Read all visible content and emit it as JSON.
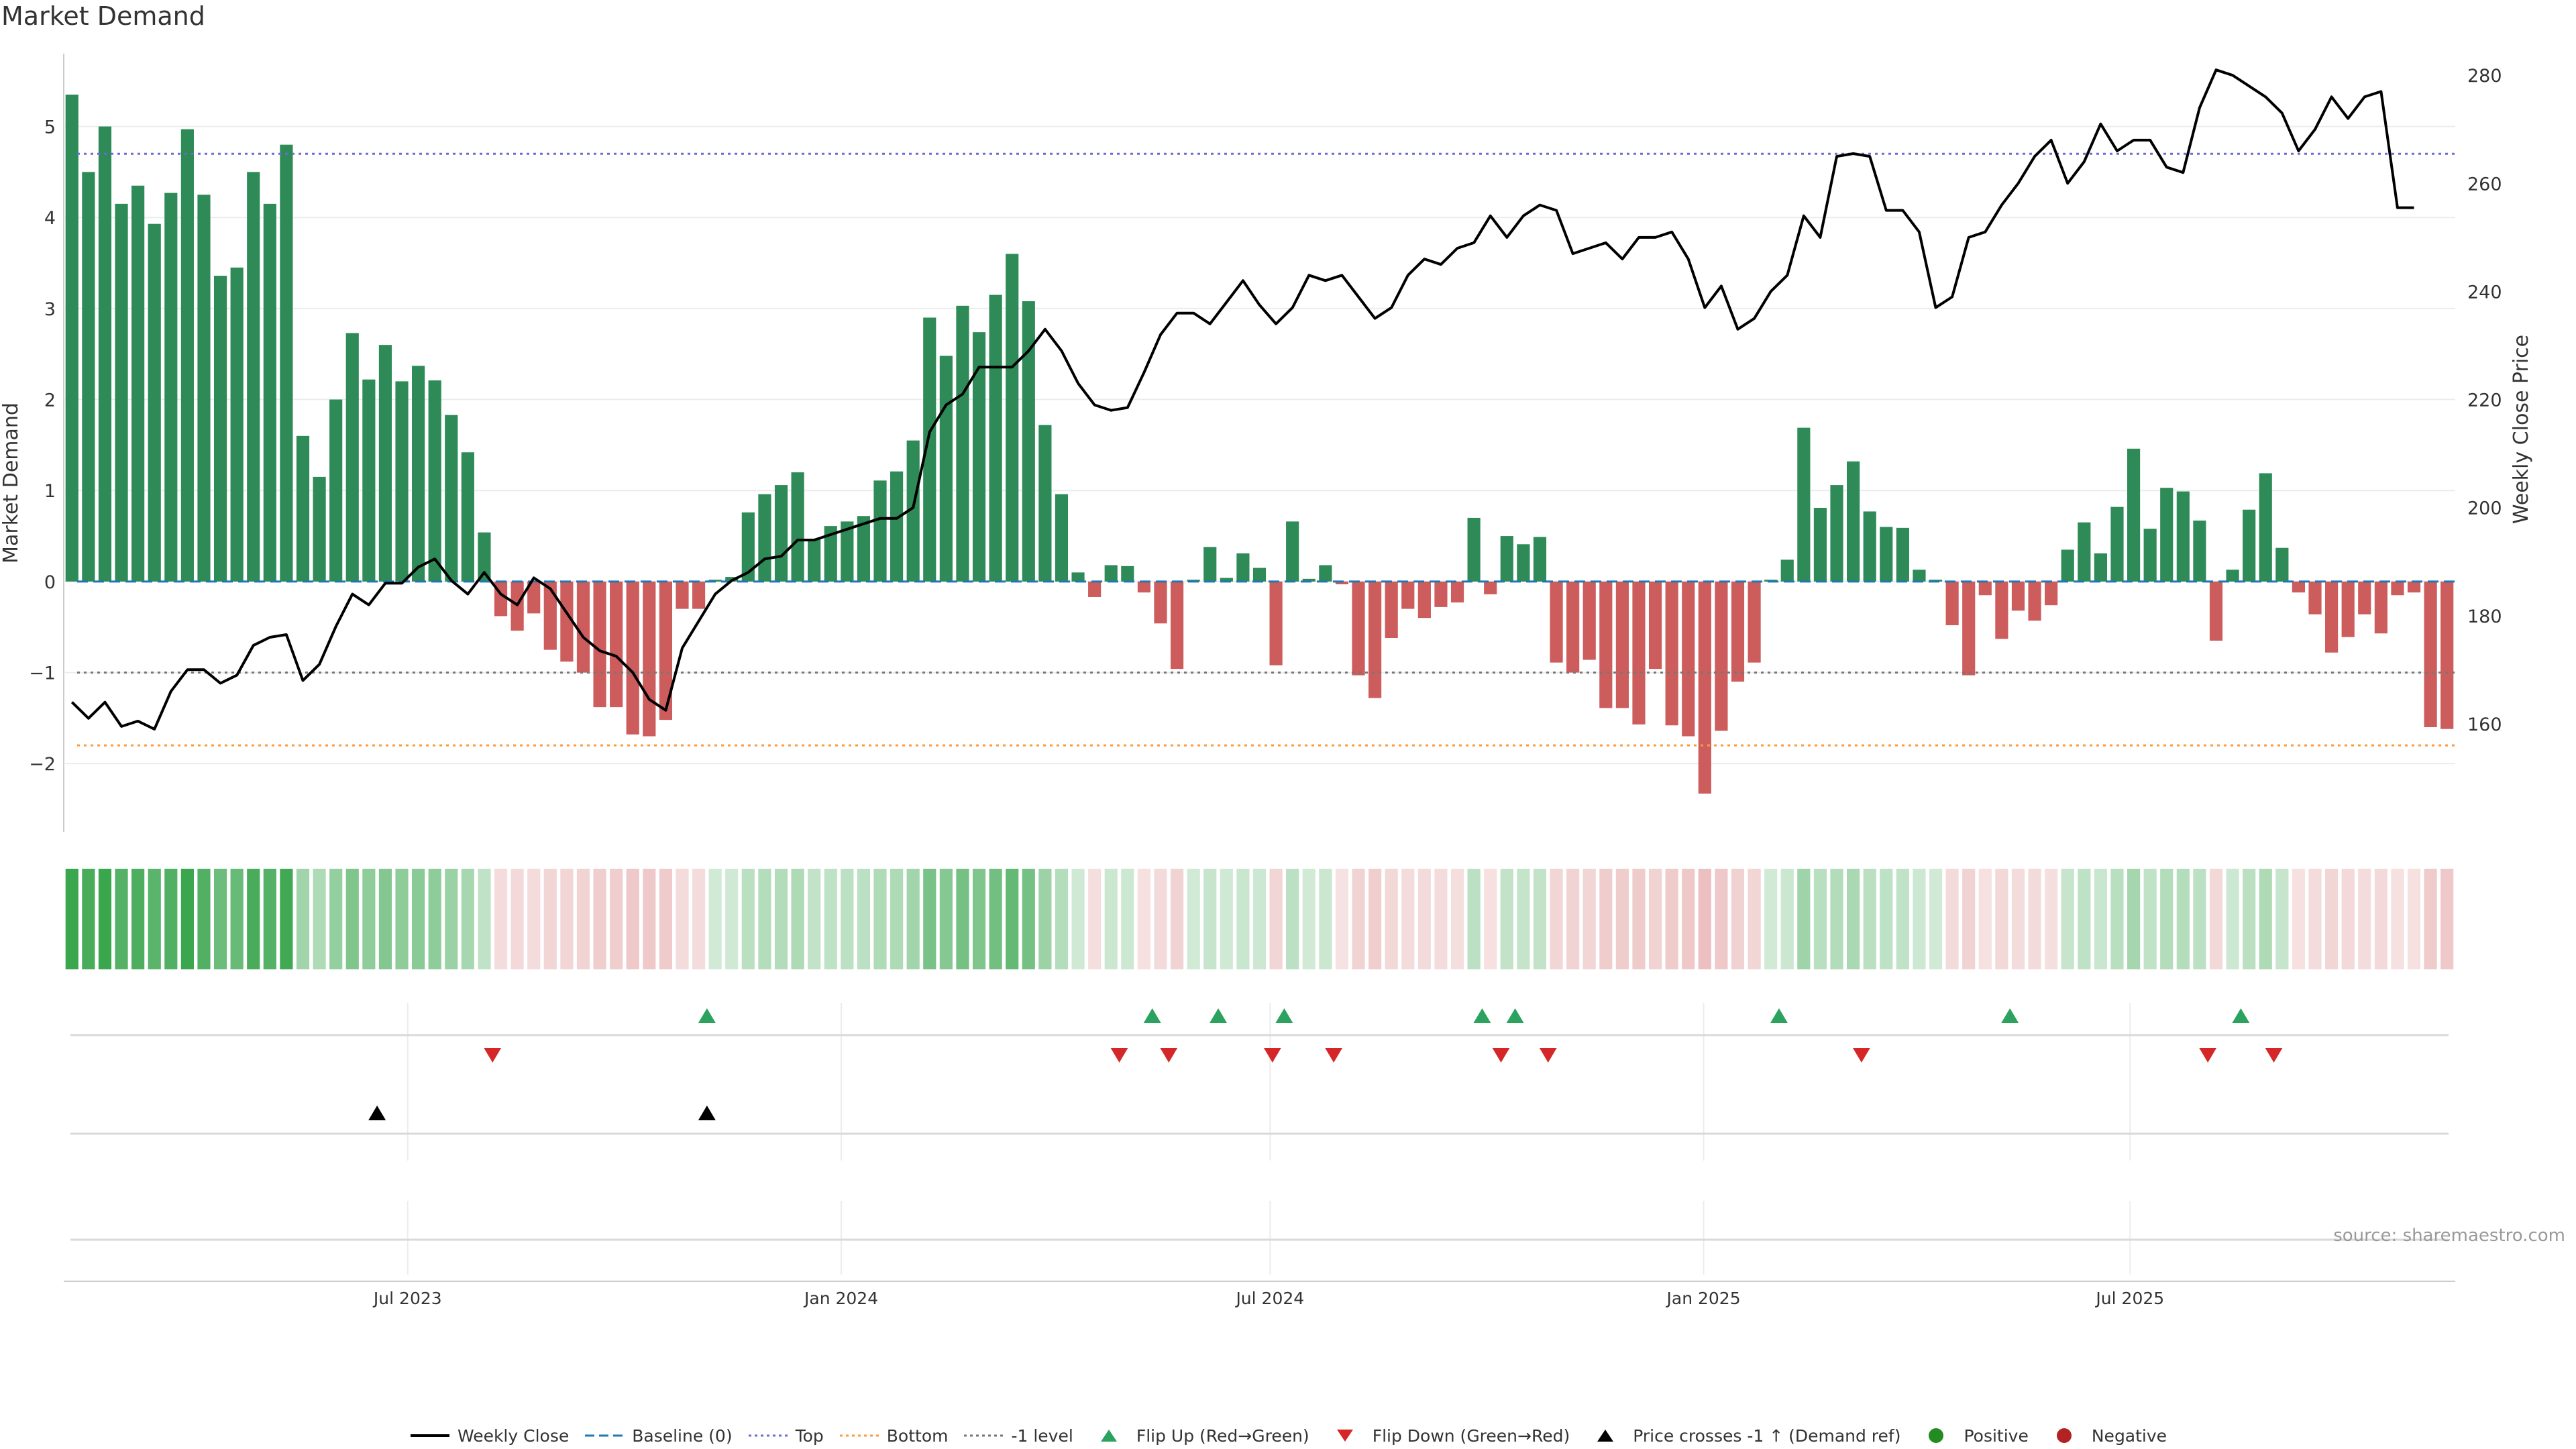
{
  "title": "Market Demand",
  "source": "source: sharemaestro.com",
  "colors": {
    "positive_bar": "#2e8b57",
    "negative_bar": "#cd5c5c",
    "price_line": "#000000",
    "baseline": "#1f77b4",
    "top": "#6b6bd6",
    "bottom": "#ff9a3c",
    "minus1": "#777777",
    "flip_up": "#2ca25f",
    "flip_down": "#d62728",
    "cross": "#000000",
    "positive_dot": "#228b22",
    "negative_dot": "#b22222"
  },
  "legend": [
    {
      "label": "Weekly Close",
      "kind": "line",
      "color": "#000000"
    },
    {
      "label": "Baseline (0)",
      "kind": "dash",
      "color": "#1f77b4"
    },
    {
      "label": "Top",
      "kind": "dot",
      "color": "#6b6bd6"
    },
    {
      "label": "Bottom",
      "kind": "dot",
      "color": "#ff9a3c"
    },
    {
      "label": "-1 level",
      "kind": "dot",
      "color": "#777777"
    },
    {
      "label": "Flip Up (Red→Green)",
      "kind": "tri-up",
      "color": "#2ca25f"
    },
    {
      "label": "Flip Down (Green→Red)",
      "kind": "tri-down",
      "color": "#d62728"
    },
    {
      "label": "Price crosses -1 ↑ (Demand ref)",
      "kind": "tri-up",
      "color": "#000000"
    },
    {
      "label": "Positive",
      "kind": "circle",
      "color": "#228b22"
    },
    {
      "label": "Negative",
      "kind": "circle",
      "color": "#b22222"
    }
  ],
  "chart_data": {
    "type": "bar",
    "title": "Market Demand",
    "ylabel": "Market Demand",
    "y2label": "Weekly Close Price",
    "ylim": [
      -2.75,
      5.8
    ],
    "y2lim": [
      140,
      284
    ],
    "yticks": [
      -2,
      -1,
      0,
      1,
      2,
      3,
      4,
      5
    ],
    "ytick_labels": [
      "−2",
      "−1",
      "0",
      "1",
      "2",
      "3",
      "4",
      "5"
    ],
    "y2ticks": [
      160,
      180,
      200,
      220,
      240,
      260,
      280
    ],
    "x_start": "2023-02-05",
    "x_end": "2025-11-16",
    "xticks": [
      "2023-07-01",
      "2024-01-01",
      "2024-07-01",
      "2025-01-01",
      "2025-07-01"
    ],
    "xtick_labels": [
      "Jul 2023",
      "Jan 2024",
      "Jul 2024",
      "Jan 2025",
      "Jul 2025"
    ],
    "reference_lines": {
      "baseline": 0,
      "top": 4.7,
      "bottom": -1.8,
      "minus_one": -1
    },
    "demand": [
      5.35,
      4.5,
      5.0,
      4.15,
      4.35,
      3.93,
      4.27,
      4.97,
      4.25,
      3.36,
      3.45,
      4.5,
      4.15,
      4.8,
      1.6,
      1.15,
      2.0,
      2.73,
      2.22,
      2.6,
      2.2,
      2.37,
      2.21,
      1.83,
      1.42,
      0.54,
      -0.38,
      -0.54,
      -0.35,
      -0.75,
      -0.88,
      -1.0,
      -1.38,
      -1.38,
      -1.68,
      -1.7,
      -1.52,
      -0.3,
      -0.3,
      0.02,
      0.05,
      0.76,
      0.96,
      1.06,
      1.2,
      0.47,
      0.61,
      0.66,
      0.72,
      1.11,
      1.21,
      1.55,
      2.9,
      2.48,
      3.03,
      2.74,
      3.15,
      3.6,
      3.08,
      1.72,
      0.96,
      0.1,
      -0.17,
      0.18,
      0.17,
      -0.12,
      -0.46,
      -0.96,
      0.02,
      0.38,
      0.04,
      0.31,
      0.15,
      -0.92,
      0.66,
      0.03,
      0.18,
      -0.03,
      -1.03,
      -1.28,
      -0.62,
      -0.3,
      -0.4,
      -0.28,
      -0.23,
      0.7,
      -0.14,
      0.5,
      0.41,
      0.49,
      -0.89,
      -1.0,
      -0.86,
      -1.39,
      -1.39,
      -1.57,
      -0.96,
      -1.58,
      -1.7,
      -2.33,
      -1.64,
      -1.1,
      -0.89,
      0.02,
      0.24,
      1.69,
      0.81,
      1.06,
      1.32,
      0.77,
      0.6,
      0.59,
      0.13,
      0.02,
      -0.48,
      -1.03,
      -0.15,
      -0.63,
      -0.32,
      -0.43,
      -0.26,
      0.35,
      0.65,
      0.31,
      0.82,
      1.46,
      0.58,
      1.03,
      0.99,
      0.67,
      -0.65,
      0.13,
      0.79,
      1.19,
      0.37,
      -0.12,
      -0.36,
      -0.78,
      -0.61,
      -0.36,
      -0.57,
      -0.15,
      -0.12,
      -1.6,
      -1.62
    ],
    "price": [
      164,
      161,
      164,
      159.5,
      160.5,
      159,
      166,
      170,
      170,
      167.5,
      169,
      174.5,
      176,
      176.5,
      168,
      171,
      178,
      184,
      182,
      186,
      186,
      189,
      190.5,
      186.5,
      184,
      188,
      184,
      182,
      187,
      185,
      180.5,
      176,
      173.5,
      172.5,
      169.5,
      164.5,
      162.5,
      174,
      179,
      184,
      186.5,
      188,
      190.5,
      191,
      194,
      194,
      195,
      196,
      197,
      198,
      198,
      200,
      214,
      219,
      221,
      226,
      226,
      226,
      229,
      233,
      229,
      223,
      219,
      218,
      218.5,
      225,
      232,
      236,
      236,
      234,
      238,
      242,
      237.5,
      234,
      237,
      243,
      242,
      243,
      239,
      235,
      237,
      243,
      246,
      245,
      248,
      249,
      254,
      250,
      254,
      256,
      255,
      247,
      248,
      249,
      246,
      250,
      250,
      251,
      246,
      237,
      241,
      233,
      235,
      240,
      243,
      254,
      250,
      265,
      265.5,
      265,
      255,
      255,
      251,
      237,
      239,
      250,
      251,
      256,
      260,
      265,
      268,
      260,
      264,
      271,
      266,
      268,
      268,
      263,
      262,
      274,
      281,
      280,
      278,
      276,
      273,
      266,
      270,
      276,
      272,
      276,
      277,
      255.5,
      255.5
    ],
    "flip_up": [
      "2023-11-05",
      "2024-05-12",
      "2024-06-09",
      "2024-07-07",
      "2024-09-29",
      "2024-10-13",
      "2025-02-02",
      "2025-05-11",
      "2025-08-17"
    ],
    "flip_down": [
      "2023-08-06",
      "2024-04-28",
      "2024-05-19",
      "2024-07-02",
      "2024-07-28",
      "2024-10-07",
      "2024-10-27",
      "2025-03-09",
      "2025-08-03",
      "2025-08-31"
    ],
    "price_cross": [
      "2023-06-18",
      "2023-11-05"
    ]
  }
}
